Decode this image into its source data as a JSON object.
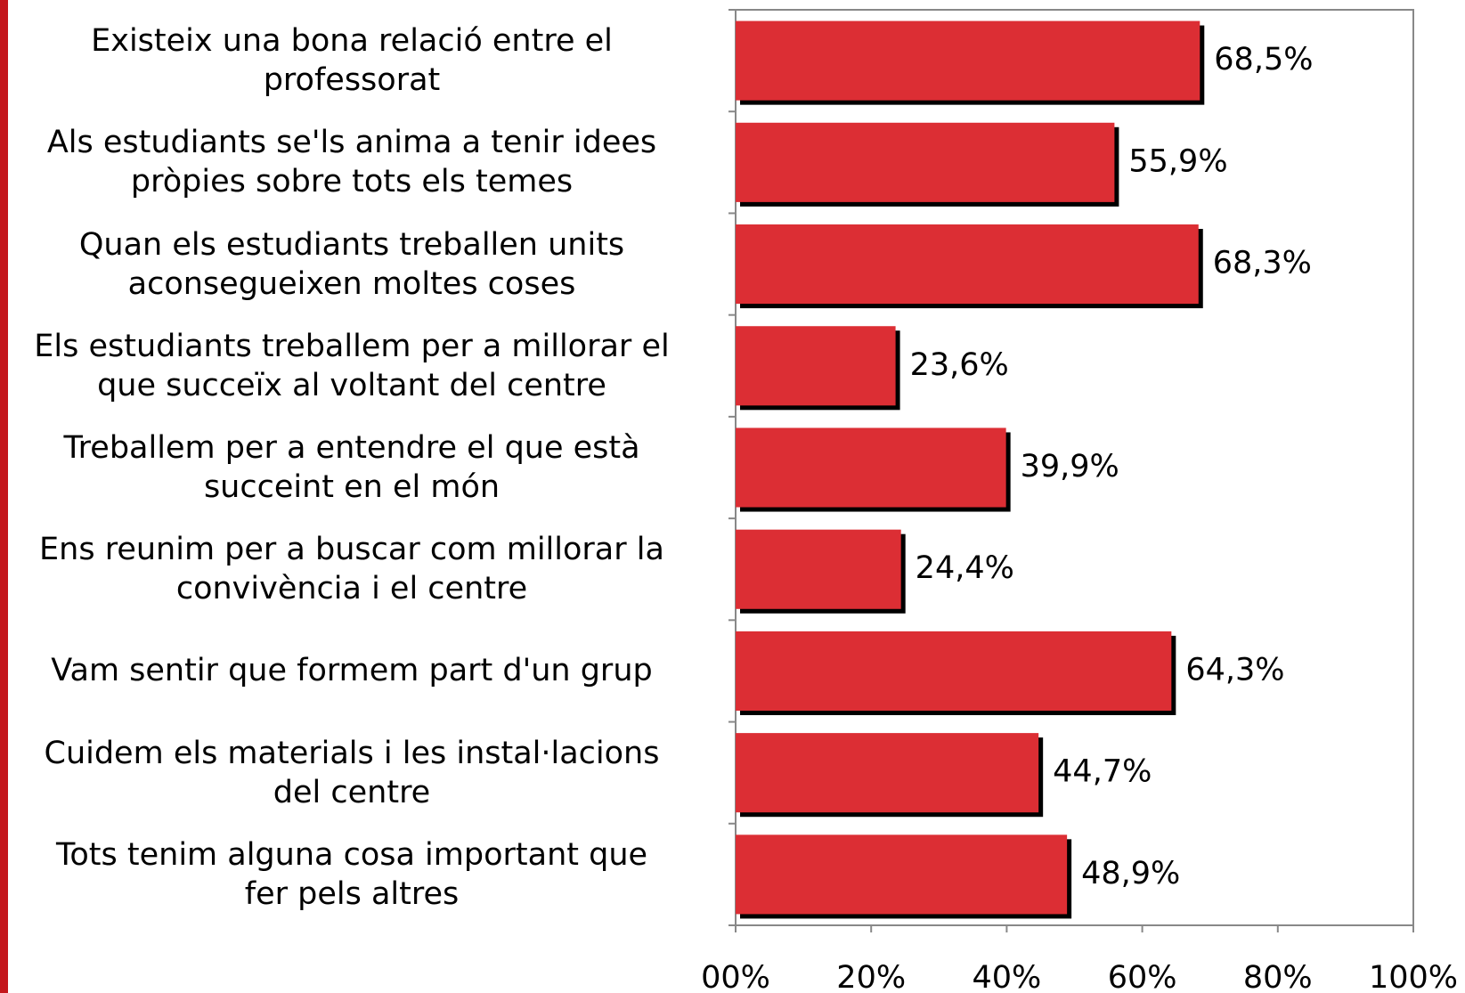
{
  "chart_data": {
    "type": "bar",
    "orientation": "horizontal",
    "categories": [
      "Existeix una bona relació entre el\nprofessorat",
      "Als estudiants se'ls anima a tenir idees\npròpies sobre tots els temes",
      "Quan els estudiants treballen units\naconsegueixen moltes coses",
      "Els estudiants treballem per a millorar el\nque succeïx al voltant del centre",
      "Treballem per a entendre el que està\nsucceint en el món",
      "Ens reunim per a buscar com millorar la\nconvivència i el centre",
      "Vam sentir que formem part d'un grup",
      "Cuidem els materials i les instal·lacions\ndel centre",
      "Tots tenim alguna cosa important que\nfer pels altres"
    ],
    "values": [
      68.5,
      55.9,
      68.3,
      23.6,
      39.9,
      24.4,
      64.3,
      44.7,
      48.9
    ],
    "value_labels": [
      "68,5%",
      "55,9%",
      "68,3%",
      "23,6%",
      "39,9%",
      "24,4%",
      "64,3%",
      "44,7%",
      "48,9%"
    ],
    "color": "#dc2e34",
    "xlim": [
      0,
      100
    ],
    "xticks": [
      {
        "value": 0,
        "label": "00%"
      },
      {
        "value": 20,
        "label": "20%"
      },
      {
        "value": 40,
        "label": "40%"
      },
      {
        "value": 60,
        "label": "60%"
      },
      {
        "value": 80,
        "label": "80%"
      },
      {
        "value": 100,
        "label": "100%"
      }
    ]
  }
}
